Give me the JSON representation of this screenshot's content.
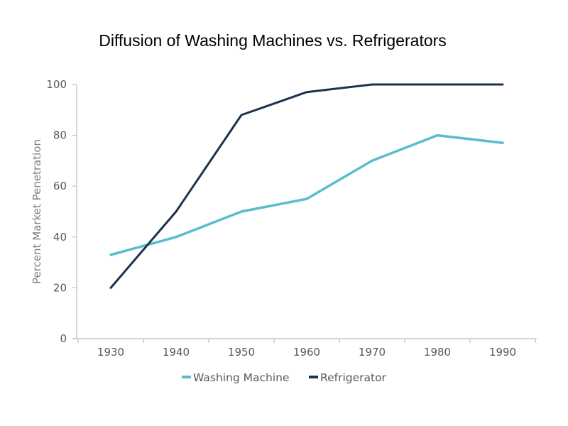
{
  "chart_data": {
    "type": "line",
    "title": "Diffusion of Washing Machines vs. Refrigerators",
    "xlabel": "",
    "ylabel": "Percent Market Penetration",
    "x": [
      1930,
      1940,
      1950,
      1960,
      1970,
      1980,
      1990
    ],
    "x_tick_labels": [
      "1930",
      "1940",
      "1950",
      "1960",
      "1970",
      "1980",
      "1990"
    ],
    "ylim": [
      0,
      100
    ],
    "y_ticks": [
      0,
      20,
      40,
      60,
      80,
      100
    ],
    "y_tick_labels": [
      "0",
      "20",
      "40",
      "60",
      "80",
      "100"
    ],
    "grid": false,
    "legend_position": "bottom",
    "series": [
      {
        "name": "Washing Machine",
        "color": "#5bbccd",
        "values": [
          33,
          40,
          50,
          55,
          70,
          80,
          77
        ]
      },
      {
        "name": "Refrigerator",
        "color": "#1c3350",
        "values": [
          20,
          50,
          88,
          97,
          100,
          100,
          100
        ]
      }
    ],
    "axis_color": "#bfbfbf"
  }
}
